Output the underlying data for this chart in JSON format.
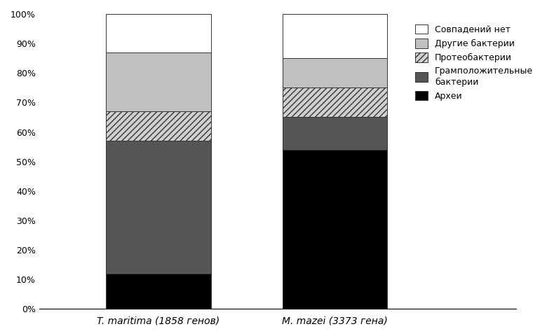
{
  "categories": [
    "T. maritima (1858 генов)",
    "M. mazei (3373 гена)"
  ],
  "series": [
    {
      "name": "Археи",
      "values": [
        12,
        54
      ],
      "color": "#000000",
      "hatch": null
    },
    {
      "name": "Грамположительные\nбактерии",
      "values": [
        45,
        11
      ],
      "color": "#555555",
      "hatch": null
    },
    {
      "name": "Протеобактерии",
      "values": [
        10,
        10
      ],
      "color": "#d0d0d0",
      "hatch": "////"
    },
    {
      "name": "Другие бактерии",
      "values": [
        20,
        10
      ],
      "color": "#c0c0c0",
      "hatch": null
    },
    {
      "name": "Совпадений нет",
      "values": [
        13,
        15
      ],
      "color": "#ffffff",
      "hatch": null
    }
  ],
  "bar_positions": [
    0.25,
    0.62
  ],
  "bar_width": 0.22,
  "xlim": [
    0,
    1.0
  ],
  "ylim": [
    0,
    100
  ],
  "yticks": [
    0,
    10,
    20,
    30,
    40,
    50,
    60,
    70,
    80,
    90,
    100
  ],
  "ytick_labels": [
    "0%",
    "10%",
    "20%",
    "30%",
    "40%",
    "50%",
    "60%",
    "70%",
    "80%",
    "90%",
    "100%"
  ],
  "background_color": "#ffffff",
  "legend_fontsize": 9,
  "tick_fontsize": 9,
  "xlabel_fontsize": 10
}
